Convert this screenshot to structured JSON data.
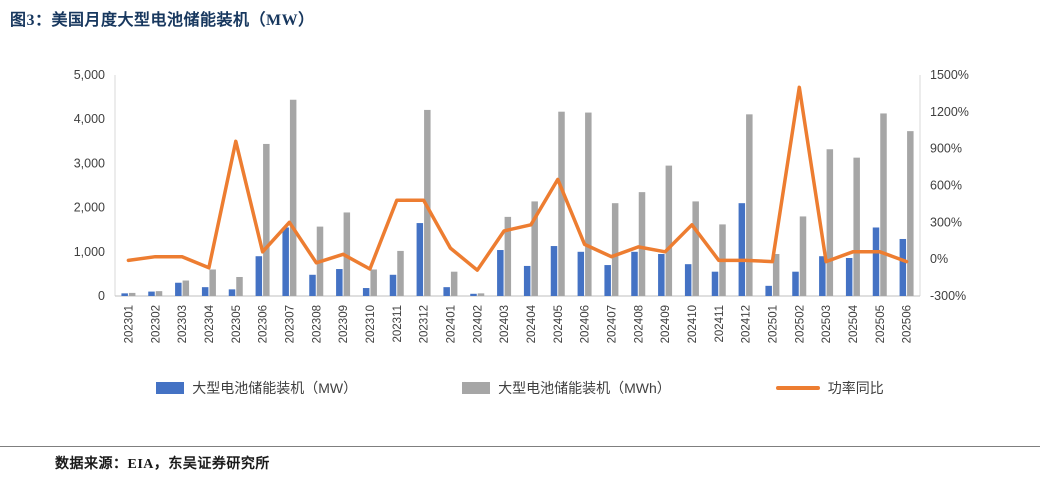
{
  "header": {
    "title": "图3：美国月度大型电池储能装机（MW）"
  },
  "footer": {
    "source": "数据来源：EIA，东吴证券研究所"
  },
  "colors": {
    "title_navy": "#17375E",
    "bar_mw": "#4472C4",
    "bar_mwh": "#A6A6A6",
    "line_yoy": "#ED7D31",
    "axis_text": "#404040",
    "axis_line": "#BFBFBF"
  },
  "legend": [
    {
      "label": "大型电池储能装机（MW）",
      "marker": "square",
      "color": "#4472C4"
    },
    {
      "label": "大型电池储能装机（MWh）",
      "marker": "square",
      "color": "#A6A6A6"
    },
    {
      "label": "功率同比",
      "marker": "line",
      "color": "#ED7D31"
    }
  ],
  "chart_data": {
    "type": "bar",
    "subtype": "grouped-bars-with-line",
    "title": "美国月度大型电池储能装机（MW）",
    "grid": false,
    "legend_position": "bottom",
    "categories": [
      "202301",
      "202302",
      "202303",
      "202304",
      "202305",
      "202306",
      "202307",
      "202308",
      "202309",
      "202310",
      "202311",
      "202312",
      "202401",
      "202402",
      "202403",
      "202404",
      "202405",
      "202406",
      "202407",
      "202408",
      "202409",
      "202410",
      "202411",
      "202412",
      "202501",
      "202502",
      "202503",
      "202504",
      "202505",
      "202506"
    ],
    "series": [
      {
        "name": "大型电池储能装机（MW）",
        "type": "bar",
        "axis": "left",
        "color": "#4472C4",
        "values": [
          60,
          100,
          300,
          200,
          150,
          900,
          1550,
          480,
          610,
          180,
          480,
          1650,
          200,
          50,
          1040,
          680,
          1130,
          1000,
          700,
          1000,
          950,
          720,
          550,
          2100,
          230,
          550,
          900,
          860,
          1550,
          1290
        ]
      },
      {
        "name": "大型电池储能装机（MWh）",
        "type": "bar",
        "axis": "left",
        "color": "#A6A6A6",
        "values": [
          70,
          110,
          350,
          600,
          430,
          3440,
          4440,
          1570,
          1890,
          600,
          1020,
          4210,
          550,
          60,
          1790,
          2140,
          4170,
          4150,
          2100,
          2350,
          2950,
          2140,
          1620,
          4110,
          950,
          1800,
          3320,
          3130,
          4130,
          3730
        ]
      },
      {
        "name": "功率同比",
        "type": "line",
        "axis": "right",
        "color": "#ED7D31",
        "values": [
          -10,
          20,
          20,
          -70,
          960,
          60,
          300,
          -30,
          40,
          -80,
          480,
          480,
          90,
          -90,
          230,
          280,
          650,
          120,
          20,
          100,
          60,
          280,
          -10,
          -10,
          -20,
          1400,
          -20,
          60,
          60,
          -20
        ]
      }
    ],
    "left_axis": {
      "min": 0,
      "max": 5000,
      "step": 1000,
      "tick_labels": [
        "0",
        "1,000",
        "2,000",
        "3,000",
        "4,000",
        "5,000"
      ]
    },
    "right_axis": {
      "min": -300,
      "max": 1500,
      "step": 300,
      "tick_labels": [
        "-300%",
        "0%",
        "300%",
        "600%",
        "900%",
        "1200%",
        "1500%"
      ]
    }
  }
}
